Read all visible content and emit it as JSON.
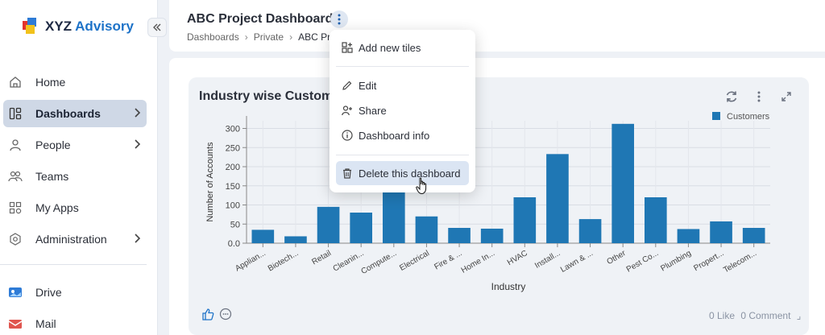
{
  "app": {
    "brand_part1": "XYZ",
    "brand_part2": "Advisory"
  },
  "sidebar": {
    "items": [
      {
        "label": "Home",
        "icon": "home-icon"
      },
      {
        "label": "Dashboards",
        "icon": "dashboards-icon",
        "active": true
      },
      {
        "label": "People",
        "icon": "person-icon"
      },
      {
        "label": "Teams",
        "icon": "teams-icon"
      },
      {
        "label": "My Apps",
        "icon": "apps-icon"
      },
      {
        "label": "Administration",
        "icon": "settings-icon"
      }
    ],
    "apps": [
      {
        "label": "Drive",
        "icon": "drive-icon"
      },
      {
        "label": "Mail",
        "icon": "mail-icon"
      }
    ]
  },
  "header": {
    "title": "ABC Project Dashboard",
    "breadcrumb": [
      "Dashboards",
      "Private",
      "ABC Pr"
    ]
  },
  "menu": {
    "items": [
      "Add new tiles",
      "Edit",
      "Share",
      "Dashboard info",
      "Delete this dashboard"
    ]
  },
  "tile": {
    "title": "Industry wise Custom",
    "likes": "0 Like",
    "comments": "0 Comment"
  },
  "colors": {
    "bar": "#1f77b4",
    "active_nav": "#cfd8e6",
    "menu_hover": "#dbe5f3"
  },
  "chart_data": {
    "type": "bar",
    "title": "",
    "xlabel": "Industry",
    "ylabel": "Number of Accounts",
    "categories": [
      "Applian...",
      "Biotech...",
      "Retail",
      "Cleanin...",
      "Compute...",
      "Electrical",
      "Fire & ...",
      "Home In...",
      "HVAC",
      "Install...",
      "Lawn & ...",
      "Other",
      "Pest Co...",
      "Plumbing",
      "Propert...",
      "Telecom..."
    ],
    "series": [
      {
        "name": "Customers",
        "values": [
          35,
          18,
          95,
          80,
          140,
          70,
          40,
          38,
          120,
          233,
          63,
          312,
          120,
          37,
          57,
          40
        ]
      }
    ],
    "yticks": [
      "0.0",
      "50",
      "100",
      "150",
      "200",
      "250",
      "300"
    ],
    "ylim": [
      0,
      320
    ],
    "grid": true,
    "legend": "top-right"
  }
}
